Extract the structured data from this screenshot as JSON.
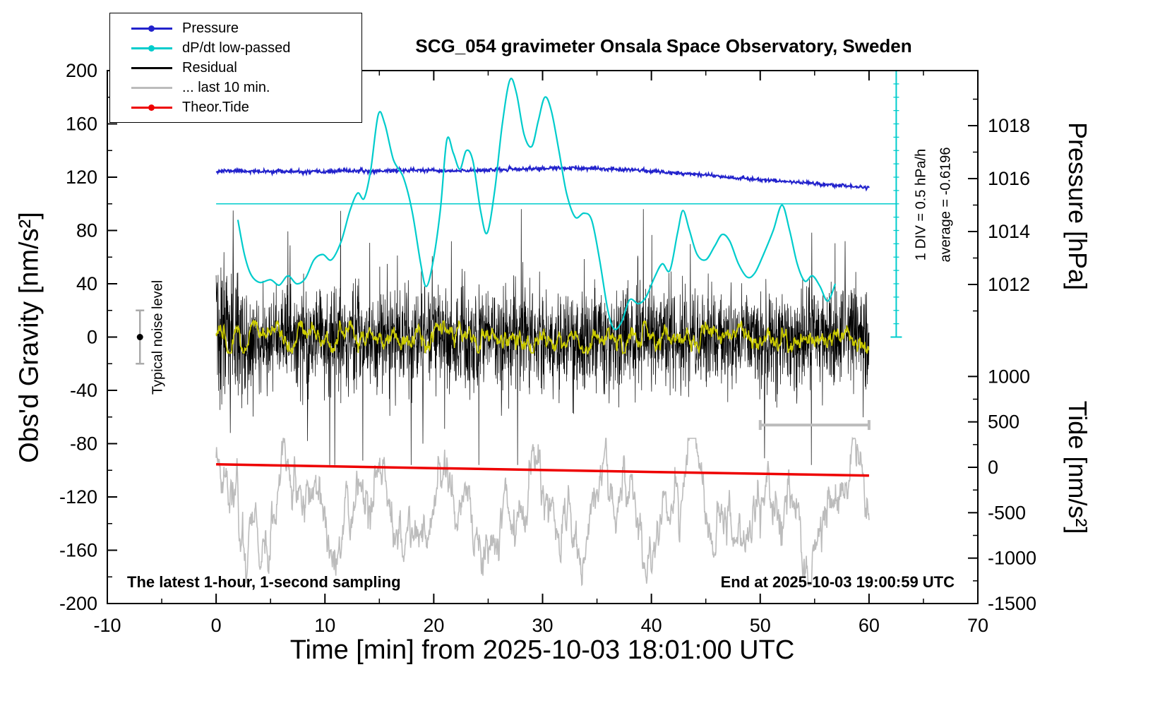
{
  "title": "SCG_054 gravimeter Onsala Space Observatory, Sweden",
  "footer_left": "The latest 1-hour, 1-second sampling",
  "footer_right": "End at 2025-10-03 19:00:59 UTC",
  "annotations": {
    "div_scale": "1 DIV = 0.5 hPa/h",
    "average": "average = -0.6196",
    "noise_label": "Typical noise level"
  },
  "axes": {
    "x": {
      "label": "Time [min] from 2025-10-03 18:01:00 UTC",
      "min": -10,
      "max": 70,
      "ticks": [
        -10,
        0,
        10,
        20,
        30,
        40,
        50,
        60,
        70
      ],
      "minor_ticks": [
        -5,
        5,
        15,
        25,
        35,
        45,
        55,
        65
      ]
    },
    "gravity": {
      "label": "Obs'd Gravity [nm/s²]",
      "min": -200,
      "max": 200,
      "ticks": [
        200,
        160,
        120,
        80,
        40,
        0,
        -40,
        -80,
        -120,
        -160,
        -200
      ],
      "minor_ticks": [
        180,
        140,
        100,
        60,
        20,
        -20,
        -60,
        -100,
        -140,
        -180
      ]
    },
    "pressure": {
      "label": "Pressure [hPa]",
      "ticks": [
        1018,
        1016,
        1014,
        1012
      ],
      "minor_ticks": [
        1019,
        1017,
        1015,
        1013,
        1011
      ]
    },
    "tide": {
      "label": "Tide [nm/s²]",
      "ticks": [
        1000,
        500,
        0,
        -500,
        -1000,
        -1500
      ],
      "minor_ticks": [
        750,
        250,
        -250,
        -750,
        -1250
      ]
    }
  },
  "legend": {
    "position": "top-left",
    "items": [
      {
        "label": "Pressure",
        "color": "#2222cc",
        "marker": true
      },
      {
        "label": "dP/dt low-passed",
        "color": "#00cccc",
        "marker": true
      },
      {
        "label": "Residual",
        "color": "#000000",
        "marker": false
      },
      {
        "label": "... last 10 min.",
        "color": "#bcbcbc",
        "marker": false
      },
      {
        "label": "Theor.Tide",
        "color": "#ee0000",
        "marker": true
      }
    ]
  },
  "chart_data": {
    "type": "line",
    "title": "SCG_054 gravimeter Onsala Space Observatory, Sweden",
    "x_axis": {
      "label": "Time [min] from 2025-10-03 18:01:00 UTC",
      "range": [
        -10,
        70
      ],
      "data_range": [
        0,
        60
      ]
    },
    "y_axes": {
      "gravity": {
        "label": "Obs'd Gravity [nm/s²]",
        "range": [
          -200,
          200
        ]
      },
      "pressure": {
        "label": "Pressure [hPa]",
        "visible_ticks": [
          1012,
          1018
        ]
      },
      "tide": {
        "label": "Tide [nm/s²]",
        "visible_ticks": [
          -1500,
          1000
        ]
      }
    },
    "series": [
      {
        "name": "Pressure",
        "color": "#2222cc",
        "axis": "pressure_hPa",
        "style": "noisy-line",
        "noise_sigma_hPa": 0.035,
        "seed": 11,
        "x": [
          0,
          2,
          4,
          6,
          8,
          10,
          12,
          14,
          16,
          18,
          20,
          22,
          24,
          26,
          28,
          30,
          32,
          34,
          36,
          38,
          40,
          42,
          44,
          46,
          48,
          50,
          52,
          54,
          56,
          58,
          60
        ],
        "y": [
          1016.28,
          1016.3,
          1016.26,
          1016.28,
          1016.24,
          1016.26,
          1016.3,
          1016.28,
          1016.3,
          1016.32,
          1016.3,
          1016.28,
          1016.32,
          1016.33,
          1016.36,
          1016.38,
          1016.4,
          1016.38,
          1016.36,
          1016.35,
          1016.28,
          1016.22,
          1016.18,
          1016.1,
          1016.02,
          1015.96,
          1015.9,
          1015.85,
          1015.78,
          1015.72,
          1015.65
        ]
      },
      {
        "name": "dP/dt low-passed",
        "color": "#00cccc",
        "axis": "dPdt_hPa_per_h",
        "style": "smooth-line",
        "zero_line_at_gravity": 100,
        "gravity_units_per_hPa_per_h": 20,
        "x": [
          2.0,
          2.6,
          3.2,
          4.0,
          5.0,
          5.8,
          6.6,
          7.4,
          8.2,
          9.0,
          9.8,
          10.6,
          11.5,
          12.3,
          13.0,
          13.6,
          14.2,
          14.9,
          15.5,
          16.3,
          17.2,
          18.0,
          18.8,
          19.3,
          19.9,
          20.6,
          21.2,
          21.8,
          22.4,
          23.0,
          23.6,
          24.3,
          24.9,
          25.6,
          26.3,
          27.0,
          27.6,
          28.3,
          29.0,
          29.6,
          30.2,
          30.8,
          31.5,
          32.2,
          33.0,
          33.8,
          34.5,
          35.2,
          36.0,
          36.6,
          37.3,
          38.0,
          38.8,
          39.5,
          40.3,
          41.0,
          41.7,
          42.4,
          42.9,
          43.5,
          44.2,
          45.0,
          45.8,
          46.5,
          47.2,
          48.0,
          48.8,
          49.5,
          50.3,
          51.2,
          52.0,
          52.7,
          53.4,
          54.1,
          54.8,
          55.5,
          56.2,
          56.9
        ],
        "y": [
          -0.6,
          -1.9,
          -2.65,
          -2.95,
          -2.85,
          -3.05,
          -2.7,
          -3.0,
          -2.8,
          -2.1,
          -1.9,
          -2.1,
          -1.4,
          -0.25,
          0.4,
          0.2,
          1.25,
          3.35,
          3.0,
          1.65,
          1.0,
          -0.25,
          -2.25,
          -3.1,
          -2.25,
          -0.25,
          2.4,
          1.9,
          1.3,
          2.0,
          1.6,
          -0.25,
          -1.1,
          0.5,
          3.0,
          4.65,
          4.15,
          2.6,
          2.15,
          3.1,
          4.0,
          3.5,
          2.0,
          0.4,
          -0.5,
          -0.35,
          -0.6,
          -2.0,
          -4.0,
          -4.7,
          -4.4,
          -3.6,
          -3.75,
          -3.5,
          -2.75,
          -2.25,
          -2.5,
          -1.1,
          -0.25,
          -1.0,
          -1.9,
          -2.1,
          -1.6,
          -1.15,
          -1.4,
          -2.25,
          -2.75,
          -2.6,
          -1.9,
          -1.0,
          -0.05,
          -1.0,
          -2.25,
          -2.9,
          -2.7,
          -3.1,
          -3.65,
          -3.0
        ]
      },
      {
        "name": "Residual",
        "color": "#000000",
        "axis": "gravity_nm_s2",
        "style": "stochastic",
        "mean": 0,
        "sigma": 19,
        "spike_fraction": 0.013,
        "clamp": [
          -96,
          96
        ],
        "seed": 20251003,
        "extremes": [
          [
            1.3,
            -72
          ],
          [
            1.55,
            95
          ],
          [
            8.4,
            -78
          ],
          [
            19.0,
            -80
          ],
          [
            50.4,
            -91
          ],
          [
            57.8,
            72
          ]
        ]
      },
      {
        "name": "Residual low-passed",
        "color": "#cccc00",
        "axis": "gravity_nm_s2",
        "style": "stochastic-smooth",
        "mean": 0,
        "sigma": 6,
        "clamp": [
          -12,
          12
        ],
        "seed": 77
      },
      {
        "name": "... last 10 min.",
        "color": "#bcbcbc",
        "axis": "gravity_nm_s2",
        "style": "stochastic-smooth",
        "mean": -130,
        "sigma": 18,
        "clamp": [
          -186,
          -76
        ],
        "seed": 404,
        "note": "last 10 minutes of residual, stretched over full axis and offset for display"
      },
      {
        "name": "Theor.Tide",
        "color": "#ee0000",
        "axis": "tide_nm_s2",
        "style": "smooth-line",
        "x": [
          0,
          10,
          20,
          30,
          40,
          50,
          60
        ],
        "y": [
          33,
          12,
          -9,
          -30,
          -51,
          -71,
          -92
        ]
      }
    ],
    "reference_line": {
      "axis": "gravity",
      "value": 100,
      "color": "#00cccc",
      "x_range": [
        0,
        62.5
      ]
    },
    "scale_bar": {
      "label": "1 DIV = 0.5 hPa/h",
      "divisions": 20,
      "color": "#00cccc",
      "gravity_span": [
        0,
        200
      ],
      "x_min": 62.5
    },
    "last10_bracket": {
      "x_range": [
        50,
        60
      ],
      "gravity": -66,
      "color": "#bcbcbc"
    },
    "noise_marker": {
      "x": -7,
      "gravity": 0,
      "half_height": 20,
      "label": "Typical noise level",
      "bar_color": "#aaaaaa",
      "dot_color": "#000000"
    }
  }
}
